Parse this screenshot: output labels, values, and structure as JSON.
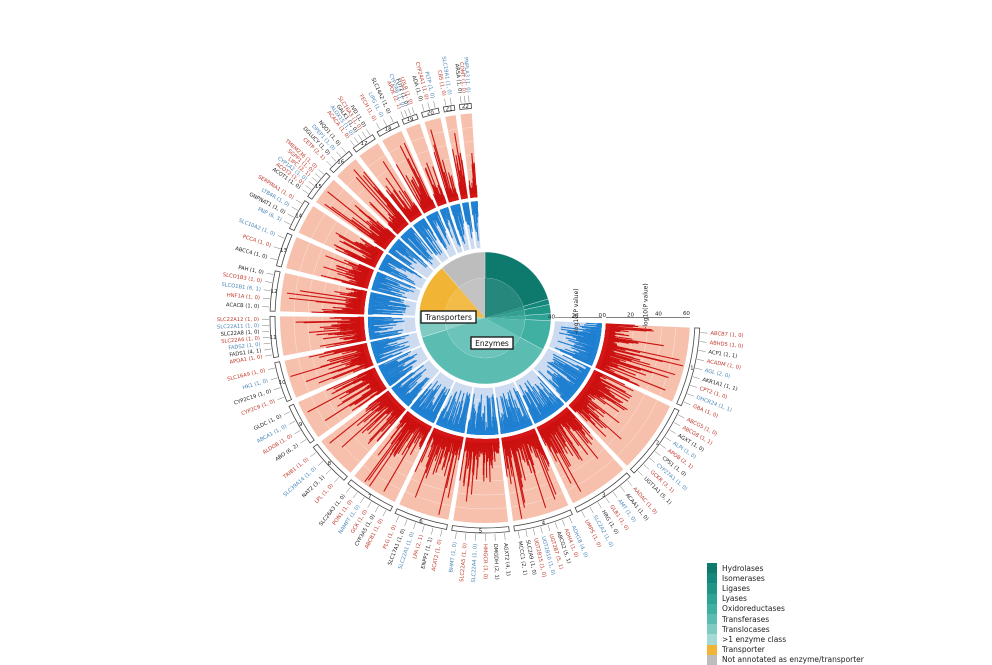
{
  "chart_data": {
    "type": "circular-manhattan",
    "chromosomes": [
      "1",
      "2",
      "3",
      "4",
      "5",
      "6",
      "7",
      "8",
      "9",
      "10",
      "11",
      "12",
      "13",
      "14",
      "15",
      "16",
      "17",
      "18",
      "19",
      "20",
      "21",
      "22"
    ],
    "chromosome_weights": [
      9.5,
      9.2,
      7.7,
      7.3,
      7.0,
      6.6,
      6.2,
      5.6,
      5.3,
      5.1,
      5.2,
      5.1,
      4.4,
      4.1,
      3.9,
      3.5,
      3.2,
      3.1,
      2.3,
      2.5,
      1.8,
      1.9
    ],
    "axis_labels": {
      "outer": "-log10(P value)",
      "inner": "-log10(P value)"
    },
    "outer_ticks": [
      "0",
      "20",
      "40",
      "60"
    ],
    "inner_ticks": [
      "0",
      "20",
      "40"
    ],
    "center_labels": {
      "transporters": "Transporters",
      "enzymes": "Enzymes"
    },
    "pie": [
      {
        "name": "Hydrolases",
        "value": 18.0
      },
      {
        "name": "Isomerases",
        "value": 1.2
      },
      {
        "name": "Ligases",
        "value": 2.0
      },
      {
        "name": "Lyases",
        "value": 1.5
      },
      {
        "name": "Oxidoreductases",
        "value": 6.5
      },
      {
        "name": "Transferases",
        "value": 33.0
      },
      {
        "name": "Translocases",
        "value": 4.0
      },
      {
        "name": ">1 enzyme class",
        "value": 1.8
      },
      {
        "name": "Transporter",
        "value": 10.5
      },
      {
        "name": "Not annotated as enzyme/transporter",
        "value": 10.0
      }
    ],
    "legend": [
      {
        "name": "Hydrolases",
        "color": "#0e7a6e"
      },
      {
        "name": "Isomerases",
        "color": "#14877c"
      },
      {
        "name": "Ligases",
        "color": "#1f9586"
      },
      {
        "name": "Lyases",
        "color": "#2ea396"
      },
      {
        "name": "Oxidoreductases",
        "color": "#3fb0a2"
      },
      {
        "name": "Transferases",
        "color": "#5bbcb2"
      },
      {
        "name": "Translocases",
        "color": "#7fcbc2"
      },
      {
        "name": ">1 enzyme class",
        "color": "#a3dbd4"
      },
      {
        "name": "Transporter",
        "color": "#f2b434"
      },
      {
        "name": "Not annotated as enzyme/transporter",
        "color": "#bdbdbd"
      }
    ],
    "gene_labels": [
      {
        "chr": 1,
        "text": "ABCB7 (1, 0)",
        "color": "#c0392b"
      },
      {
        "chr": 1,
        "text": "ABHD5 (1, 0)",
        "color": "#c0392b"
      },
      {
        "chr": 1,
        "text": "ACP1 (1, 1)",
        "color": "#222222"
      },
      {
        "chr": 1,
        "text": "ACADM (1, 0)",
        "color": "#c0392b"
      },
      {
        "chr": 1,
        "text": "AGL (2, 0)",
        "color": "#4a86b8"
      },
      {
        "chr": 1,
        "text": "AKR1A1 (1, 1)",
        "color": "#222222"
      },
      {
        "chr": 1,
        "text": "CPT2 (1, 0)",
        "color": "#c0392b"
      },
      {
        "chr": 1,
        "text": "DHCR24 (1, 1)",
        "color": "#4a86b8"
      },
      {
        "chr": 1,
        "text": "GBA (1, 0)",
        "color": "#c0392b"
      },
      {
        "chr": 2,
        "text": "ABCG5 (1, 0)",
        "color": "#c0392b"
      },
      {
        "chr": 2,
        "text": "ABCG8 (1, 1)",
        "color": "#c0392b"
      },
      {
        "chr": 2,
        "text": "AGXT (1, 0)",
        "color": "#222222"
      },
      {
        "chr": 2,
        "text": "ALPI (1, 0)",
        "color": "#4a86b8"
      },
      {
        "chr": 2,
        "text": "APOB (2, 1)",
        "color": "#c0392b"
      },
      {
        "chr": 2,
        "text": "CPS1 (1, 0)",
        "color": "#222222"
      },
      {
        "chr": 2,
        "text": "CYP27A1 (1, 0)",
        "color": "#4a86b8"
      },
      {
        "chr": 2,
        "text": "GCKR (3, 1)",
        "color": "#c0392b"
      },
      {
        "chr": 2,
        "text": "UGT1A1 (5, 1)",
        "color": "#222222"
      },
      {
        "chr": 3,
        "text": "AADAC (1, 0)",
        "color": "#c0392b"
      },
      {
        "chr": 3,
        "text": "ACAA1 (1, 0)",
        "color": "#222222"
      },
      {
        "chr": 3,
        "text": "AMT (1, 0)",
        "color": "#4a86b8"
      },
      {
        "chr": 3,
        "text": "GLB1 (1, 0)",
        "color": "#c0392b"
      },
      {
        "chr": 3,
        "text": "HRG (1, 0)",
        "color": "#222222"
      },
      {
        "chr": 3,
        "text": "SLC2A2 (1, 0)",
        "color": "#4a86b8"
      },
      {
        "chr": 3,
        "text": "UMPS (1, 0)",
        "color": "#c0392b"
      },
      {
        "chr": 4,
        "text": "ADH1B (4, 0)",
        "color": "#4a86b8"
      },
      {
        "chr": 4,
        "text": "ADH4 (1, 0)",
        "color": "#c0392b"
      },
      {
        "chr": 4,
        "text": "ABCG2 (5, 1)",
        "color": "#222222"
      },
      {
        "chr": 4,
        "text": "UGT2B7 (5, 1)",
        "color": "#c0392b"
      },
      {
        "chr": 4,
        "text": "UGT2B10 (1, 0)",
        "color": "#4a86b8"
      },
      {
        "chr": 4,
        "text": "UGT2B15 (1, 0)",
        "color": "#c0392b"
      },
      {
        "chr": 4,
        "text": "SLC2A9 (1, 0)",
        "color": "#222222"
      },
      {
        "chr": 4,
        "text": "MCCC1 (2, 1)",
        "color": "#222222"
      },
      {
        "chr": 5,
        "text": "AGXT2 (4, 1)",
        "color": "#222222"
      },
      {
        "chr": 5,
        "text": "DMGDH (2, 1)",
        "color": "#222222"
      },
      {
        "chr": 5,
        "text": "HMGCR (3, 0)",
        "color": "#c0392b"
      },
      {
        "chr": 5,
        "text": "SLC22A4 (1, 0)",
        "color": "#4a86b8"
      },
      {
        "chr": 5,
        "text": "SLC22A5 (1, 0)",
        "color": "#c0392b"
      },
      {
        "chr": 5,
        "text": "BHMT (1, 0)",
        "color": "#4a86b8"
      },
      {
        "chr": 6,
        "text": "ACAT2 (1, 0)",
        "color": "#c0392b"
      },
      {
        "chr": 6,
        "text": "ENPP1 (1, 1)",
        "color": "#222222"
      },
      {
        "chr": 6,
        "text": "LPA (2, 1)",
        "color": "#c0392b"
      },
      {
        "chr": 6,
        "text": "SLC22A1 (1, 0)",
        "color": "#4a86b8"
      },
      {
        "chr": 6,
        "text": "SLC17A1 (1, 0)",
        "color": "#222222"
      },
      {
        "chr": 6,
        "text": "PLG (1, 0)",
        "color": "#c0392b"
      },
      {
        "chr": 7,
        "text": "ABCB1 (1, 0)",
        "color": "#c0392b"
      },
      {
        "chr": 7,
        "text": "CYP3A5 (1, 0)",
        "color": "#222222"
      },
      {
        "chr": 7,
        "text": "GCK (1, 0)",
        "color": "#c0392b"
      },
      {
        "chr": 7,
        "text": "NAMPT (1, 0)",
        "color": "#4a86b8"
      },
      {
        "chr": 7,
        "text": "PON1 (1, 0)",
        "color": "#c0392b"
      },
      {
        "chr": 7,
        "text": "SLC26A3 (1, 0)",
        "color": "#222222"
      },
      {
        "chr": 8,
        "text": "LPL (1, 0)",
        "color": "#c0392b"
      },
      {
        "chr": 8,
        "text": "NAT2 (3, 1)",
        "color": "#222222"
      },
      {
        "chr": 8,
        "text": "SLC39A14 (1, 0)",
        "color": "#4a86b8"
      },
      {
        "chr": 8,
        "text": "TRIB1 (1, 0)",
        "color": "#c0392b"
      },
      {
        "chr": 9,
        "text": "ABO (6, 2)",
        "color": "#222222"
      },
      {
        "chr": 9,
        "text": "ALDOB (1, 0)",
        "color": "#c0392b"
      },
      {
        "chr": 9,
        "text": "ABCA1 (1, 0)",
        "color": "#4a86b8"
      },
      {
        "chr": 9,
        "text": "GLDC (1, 0)",
        "color": "#222222"
      },
      {
        "chr": 10,
        "text": "CYP2C9 (1, 0)",
        "color": "#c0392b"
      },
      {
        "chr": 10,
        "text": "CYP2C19 (1, 0)",
        "color": "#222222"
      },
      {
        "chr": 10,
        "text": "HK1 (1, 0)",
        "color": "#4a86b8"
      },
      {
        "chr": 10,
        "text": "SLC16A9 (1, 0)",
        "color": "#c0392b"
      },
      {
        "chr": 11,
        "text": "APOA1 (1, 0)",
        "color": "#c0392b"
      },
      {
        "chr": 11,
        "text": "FADS1 (4, 1)",
        "color": "#222222"
      },
      {
        "chr": 11,
        "text": "FADS2 (1, 0)",
        "color": "#4a86b8"
      },
      {
        "chr": 11,
        "text": "SLC22A6 (1, 0)",
        "color": "#c0392b"
      },
      {
        "chr": 11,
        "text": "SLC22A8 (1, 0)",
        "color": "#222222"
      },
      {
        "chr": 11,
        "text": "SLC22A11 (1, 0)",
        "color": "#4a86b8"
      },
      {
        "chr": 11,
        "text": "SLC22A12 (1, 0)",
        "color": "#c0392b"
      },
      {
        "chr": 12,
        "text": "ACACB (1, 0)",
        "color": "#222222"
      },
      {
        "chr": 12,
        "text": "HNF1A (1, 0)",
        "color": "#c0392b"
      },
      {
        "chr": 12,
        "text": "SLCO1B1 (6, 1)",
        "color": "#4a86b8"
      },
      {
        "chr": 12,
        "text": "SLCO1B3 (1, 0)",
        "color": "#c0392b"
      },
      {
        "chr": 12,
        "text": "PAH (1, 0)",
        "color": "#222222"
      },
      {
        "chr": 13,
        "text": "ABCC4 (1, 0)",
        "color": "#222222"
      },
      {
        "chr": 13,
        "text": "PCCA (1, 0)",
        "color": "#c0392b"
      },
      {
        "chr": 13,
        "text": "SLC10A2 (1, 0)",
        "color": "#4a86b8"
      },
      {
        "chr": 14,
        "text": "PNP (6, 3)",
        "color": "#4a86b8"
      },
      {
        "chr": 14,
        "text": "GNPNAT1 (1, 0)",
        "color": "#222222"
      },
      {
        "chr": 14,
        "text": "LTB4R (1, 0)",
        "color": "#4a86b8"
      },
      {
        "chr": 14,
        "text": "SERPINA1 (1, 0)",
        "color": "#c0392b"
      },
      {
        "chr": 15,
        "text": "ACOT1 (1, 0)",
        "color": "#222222"
      },
      {
        "chr": 15,
        "text": "ACOT2 (1, 0)",
        "color": "#c0392b"
      },
      {
        "chr": 15,
        "text": "CYP1A2 (1, 0)",
        "color": "#4a86b8"
      },
      {
        "chr": 15,
        "text": "LIPC (2, 1)",
        "color": "#c0392b"
      },
      {
        "chr": 15,
        "text": "SGPP1 (1, 0)",
        "color": "#c0392b"
      },
      {
        "chr": 15,
        "text": "TMEM236 (1, 0)",
        "color": "#c0392b"
      },
      {
        "chr": 16,
        "text": "CETP (2, 1)",
        "color": "#c0392b"
      },
      {
        "chr": 16,
        "text": "DGLUCY (1, 0)",
        "color": "#222222"
      },
      {
        "chr": 16,
        "text": "DPEP1 (1, 0)",
        "color": "#4a86b8"
      },
      {
        "chr": 16,
        "text": "NQO1 (1, 0)",
        "color": "#222222"
      },
      {
        "chr": 17,
        "text": "ACACA (1, 0)",
        "color": "#c0392b"
      },
      {
        "chr": 17,
        "text": "ALOX15 (1, 0)",
        "color": "#4a86b8"
      },
      {
        "chr": 17,
        "text": "GALK1 (1, 0)",
        "color": "#222222"
      },
      {
        "chr": 17,
        "text": "SLC16A3 (1, 0)",
        "color": "#c0392b"
      },
      {
        "chr": 17,
        "text": "IVD (1, 0)",
        "color": "#222222"
      },
      {
        "chr": 18,
        "text": "FECH (1, 0)",
        "color": "#c0392b"
      },
      {
        "chr": 18,
        "text": "LIPG (1, 0)",
        "color": "#4a86b8"
      },
      {
        "chr": 18,
        "text": "SLC14A2 (1, 0)",
        "color": "#222222"
      },
      {
        "chr": 19,
        "text": "APOE (2, 1)",
        "color": "#c0392b"
      },
      {
        "chr": 19,
        "text": "CYP2A6 (1, 0)",
        "color": "#4a86b8"
      },
      {
        "chr": 19,
        "text": "FUT2 (1, 0)",
        "color": "#222222"
      },
      {
        "chr": 19,
        "text": "LDLR (1, 0)",
        "color": "#c0392b"
      },
      {
        "chr": 20,
        "text": "ADA (1, 0)",
        "color": "#222222"
      },
      {
        "chr": 20,
        "text": "CYP24A1 (1, 0)",
        "color": "#c0392b"
      },
      {
        "chr": 20,
        "text": "PLTP (1, 0)",
        "color": "#4a86b8"
      },
      {
        "chr": 21,
        "text": "CBS (1, 0)",
        "color": "#c0392b"
      },
      {
        "chr": 21,
        "text": "SLC19A1 (1, 0)",
        "color": "#4a86b8"
      },
      {
        "chr": 22,
        "text": "ARSA (1, 0)",
        "color": "#222222"
      },
      {
        "chr": 22,
        "text": "COMT (1, 0)",
        "color": "#c0392b"
      },
      {
        "chr": 22,
        "text": "PNPLA3 (1, 0)",
        "color": "#4a86b8"
      }
    ]
  }
}
